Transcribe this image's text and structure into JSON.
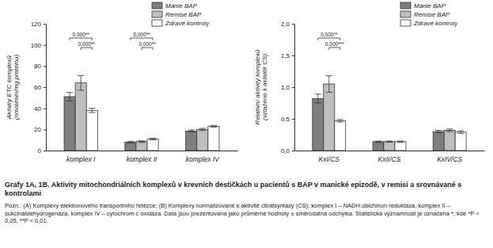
{
  "chart_data": [
    {
      "type": "bar",
      "y_label": [
        "Aktivity ETC komplexů",
        "(nmol/min/mg proteinu)"
      ],
      "categories": [
        "komplex I",
        "komplex II",
        "komplex IV"
      ],
      "series": [
        {
          "name": "Mánie BAP",
          "color": "#7f7f7f",
          "values": [
            51,
            8,
            18.5
          ],
          "errors": [
            4,
            0.8,
            1
          ]
        },
        {
          "name": "Remise BAP",
          "color": "#bfbfbf",
          "values": [
            64,
            8.5,
            20
          ],
          "errors": [
            7,
            0.8,
            1
          ]
        },
        {
          "name": "Zdravé kontroly",
          "color": "#ffffff",
          "values": [
            38,
            11,
            23
          ],
          "errors": [
            2,
            0.8,
            0.8
          ]
        }
      ],
      "ylim": [
        0,
        120
      ],
      "yticks": [
        0,
        20,
        40,
        60,
        80,
        100,
        120
      ],
      "legend": "top-right",
      "annotations": [
        {
          "text": "0,000**",
          "category": "komplex I",
          "from": "Mánie BAP",
          "to": "Zdravé kontroly"
        },
        {
          "text": "0,000**",
          "category": "komplex I",
          "from": "Remise BAP",
          "to": "Zdravé kontroly"
        },
        {
          "text": "0,000**",
          "category": "komplex II",
          "from": "Mánie BAP",
          "to": "Zdravé kontroly"
        },
        {
          "text": "0,000**",
          "category": "komplex II",
          "from": "Remise BAP",
          "to": "Zdravé kontroly"
        }
      ]
    },
    {
      "type": "bar",
      "y_label": [
        "Relativní aktivity komplexů",
        "(vztaženo k aktivitě CS)"
      ],
      "categories": [
        "KxI/CS",
        "KxII/CS",
        "KxIV/CS"
      ],
      "series": [
        {
          "name": "Mánie BAP",
          "color": "#7f7f7f",
          "values": [
            0.82,
            0.14,
            0.3
          ],
          "errors": [
            0.07,
            0.01,
            0.02
          ]
        },
        {
          "name": "Remise BAP",
          "color": "#bfbfbf",
          "values": [
            1.05,
            0.14,
            0.32
          ],
          "errors": [
            0.13,
            0.01,
            0.02
          ]
        },
        {
          "name": "Zdravé kontroly",
          "color": "#ffffff",
          "values": [
            0.47,
            0.14,
            0.29
          ],
          "errors": [
            0.02,
            0.01,
            0.02
          ]
        }
      ],
      "ylim": [
        0,
        2
      ],
      "yticks": [
        {
          "value": 0,
          "label": "0,0"
        },
        {
          "value": 0.5,
          "label": "0,5"
        },
        {
          "value": 1,
          "label": "1,0"
        },
        {
          "value": 1.5,
          "label": "1,5"
        },
        {
          "value": 2,
          "label": "2,0"
        }
      ],
      "legend": "top-right",
      "annotations": [
        {
          "text": "0,000**",
          "category": "KxI/CS",
          "from": "Mánie BAP",
          "to": "Zdravé kontroly"
        },
        {
          "text": "0,000***",
          "category": "KxI/CS",
          "from": "Remise BAP",
          "to": "Zdravé kontroly"
        }
      ]
    }
  ],
  "figure": {
    "title": "Grafy 1A, 1B. Aktivity mitochondriálních komplexů v krevních destičkách u pacientů s BAP v manické epizodě, v remisi a srovnávané s kontrolami",
    "note": "Pozn.: (A) Komplexy elektronového transportního řetězce; (B) Komplexy normalizované k aktivitě citrátsyntázy (CS); komplex I – NADH:ubichinon reduktáza, komplex II – sukcinátdehydrogenáza, komplex IV – cytochrom c oxidáza. Data jsou prezentována jako průměrné hodnoty ± směrodatná odchylka. Statistická významnost je označena *; kde *P < 0,05, **P < 0,01."
  }
}
